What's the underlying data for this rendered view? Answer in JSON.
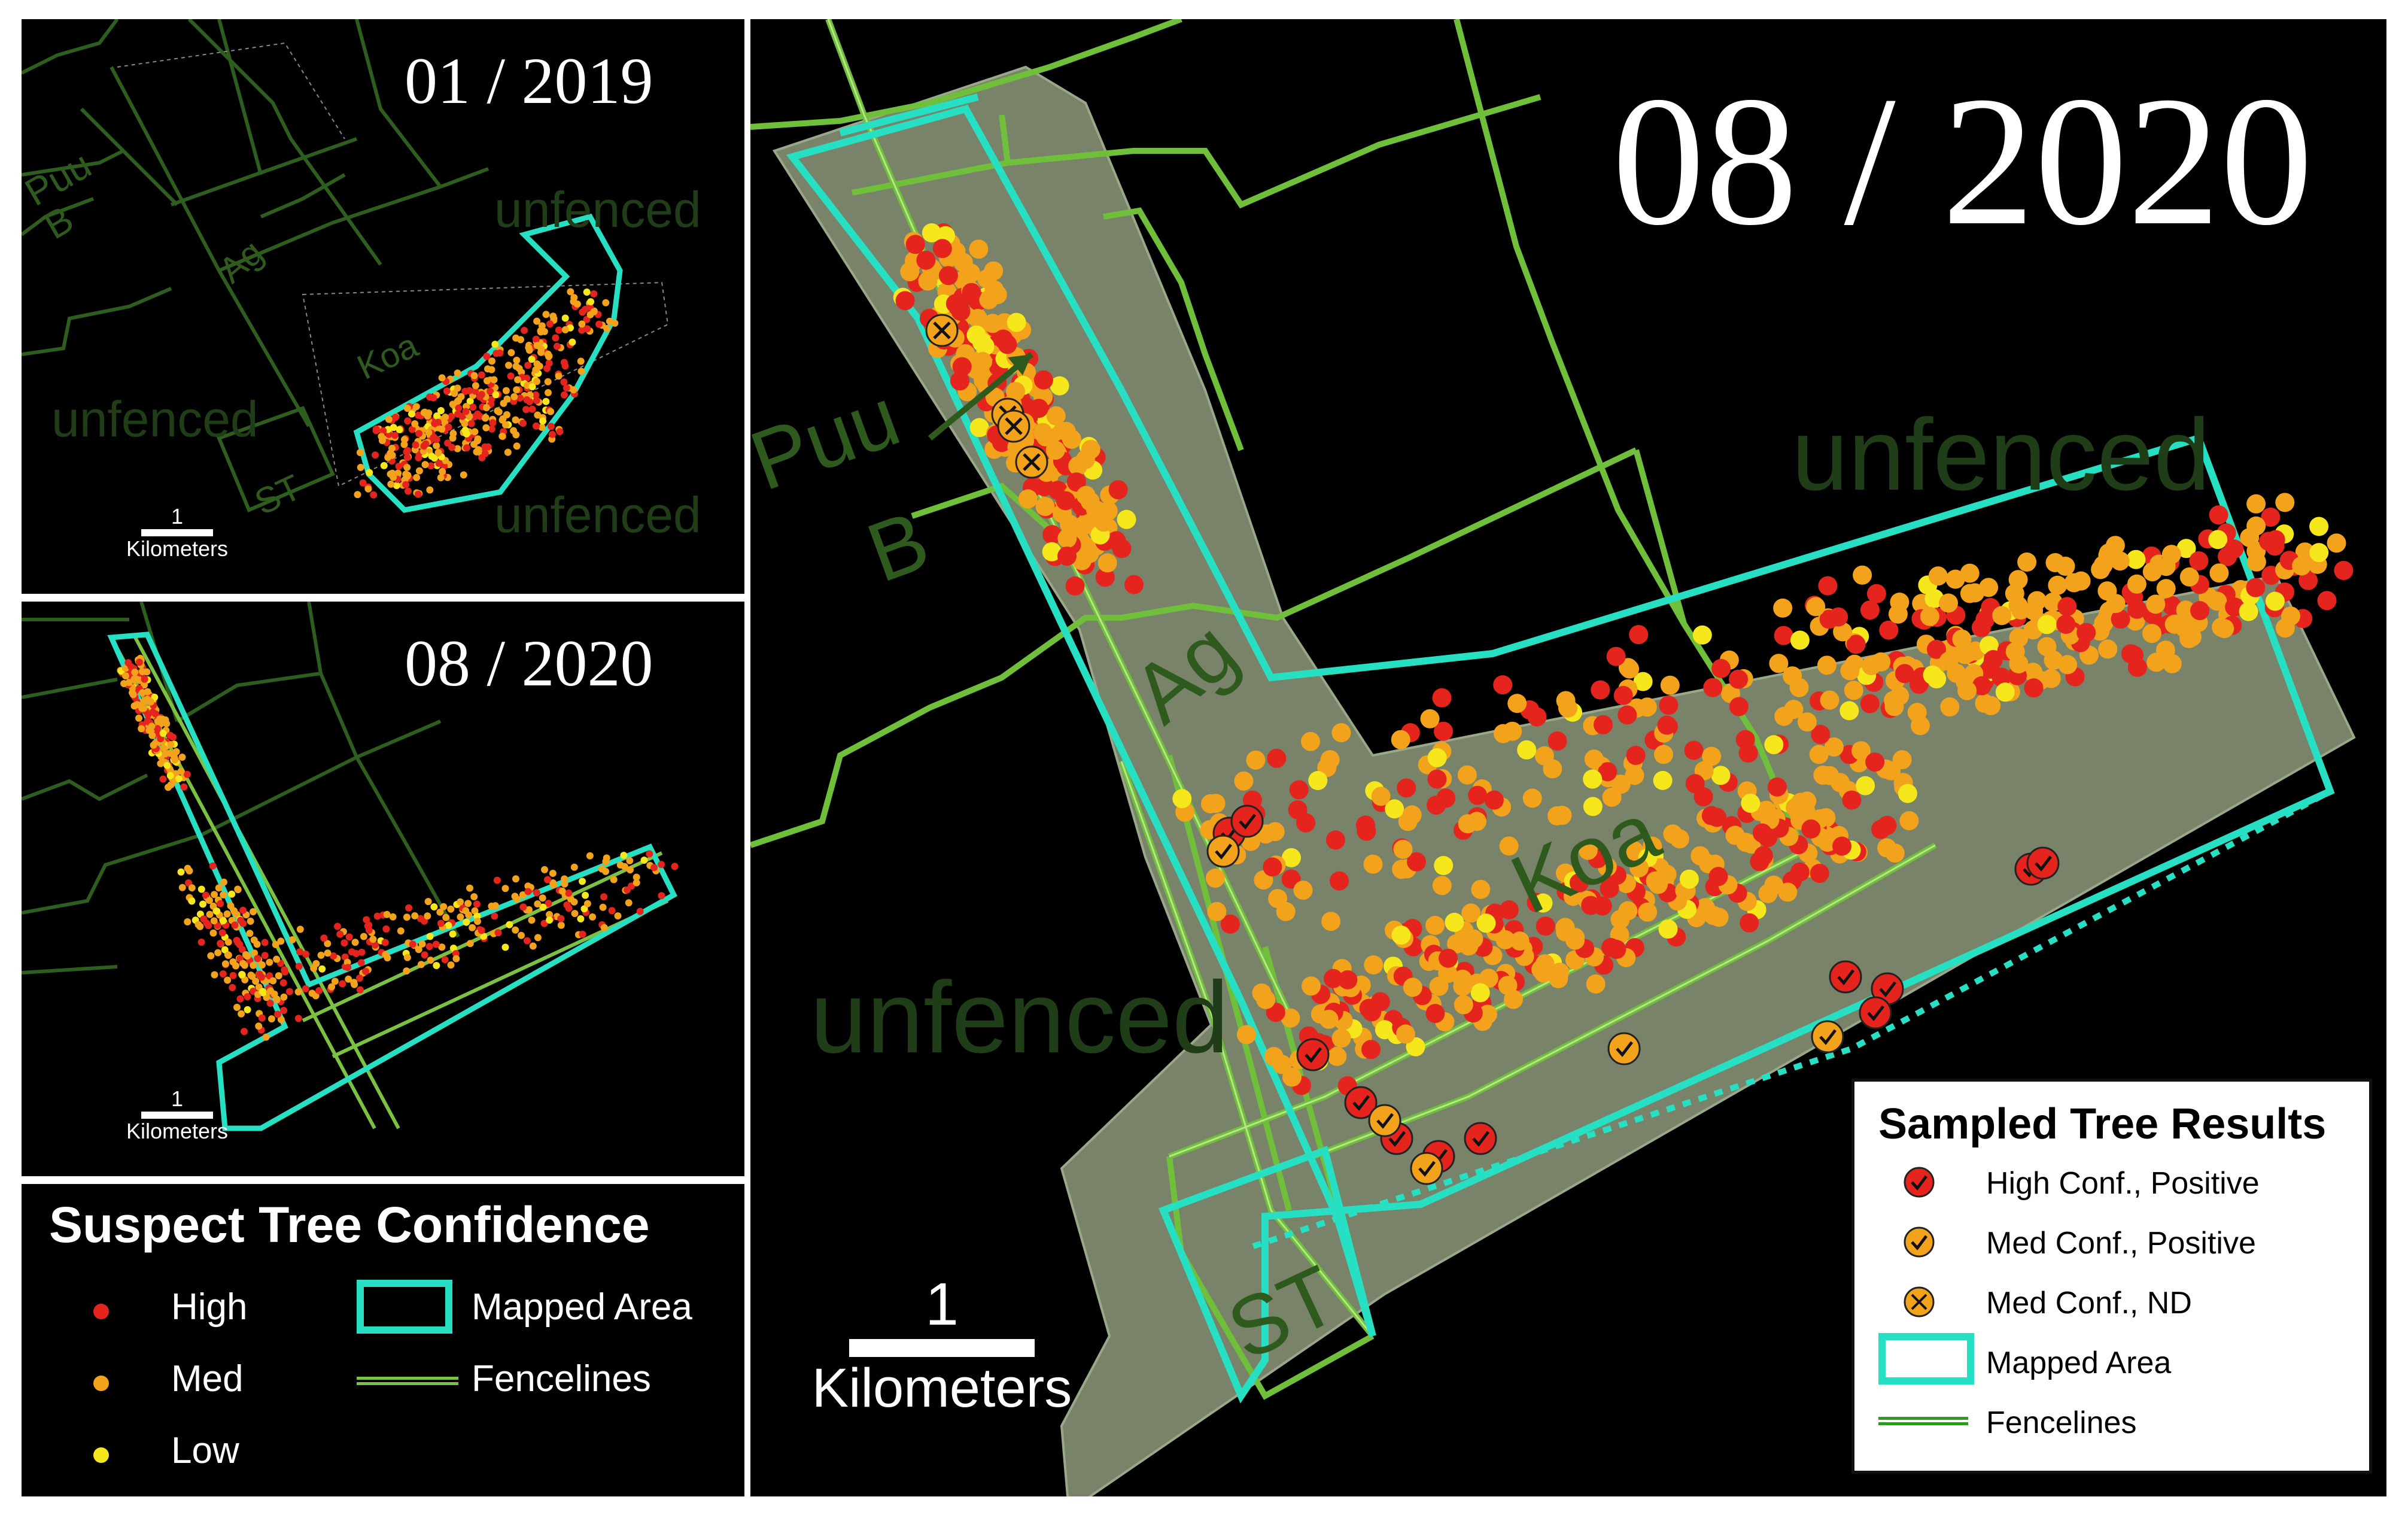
{
  "panels": {
    "top_left": {
      "date": "01 / 2019",
      "zones": {
        "puu": "Puu\nB",
        "ag": "Ag",
        "koa": "Koa",
        "st": "ST",
        "unfenced": "unfenced"
      },
      "scale": {
        "value": "1",
        "unit": "Kilometers"
      }
    },
    "mid_left": {
      "date": "08 / 2020",
      "scale": {
        "value": "1",
        "unit": "Kilometers"
      }
    },
    "main": {
      "date": "08 / 2020",
      "zones": {
        "puu_line1": "Puu",
        "puu_line2": "B",
        "ag": "Ag",
        "koa": "Koa",
        "st": "ST",
        "unfenced": "unfenced"
      },
      "scale": {
        "value": "1",
        "unit": "Kilometers"
      }
    }
  },
  "legend_confidence": {
    "title": "Suspect Tree Confidence",
    "items": [
      {
        "label": "High",
        "color": "#e4241d"
      },
      {
        "label": "Med",
        "color": "#f3a21b"
      },
      {
        "label": "Low",
        "color": "#f6e61c"
      }
    ],
    "mapped_area": "Mapped Area",
    "fencelines": "Fencelines",
    "mapped_color": "#27e0c4",
    "fence_color": "#7bc242"
  },
  "legend_sampled": {
    "title": "Sampled Tree Results",
    "items": [
      {
        "label": "High Conf., Positive",
        "icon": "red-check-icon"
      },
      {
        "label": "Med Conf., Positive",
        "icon": "orange-check-icon"
      },
      {
        "label": "Med Conf., ND",
        "icon": "orange-x-icon"
      },
      {
        "label": "Mapped Area",
        "icon": "mapped-area-icon"
      },
      {
        "label": "Fencelines",
        "icon": "fenceline-icon"
      }
    ]
  }
}
